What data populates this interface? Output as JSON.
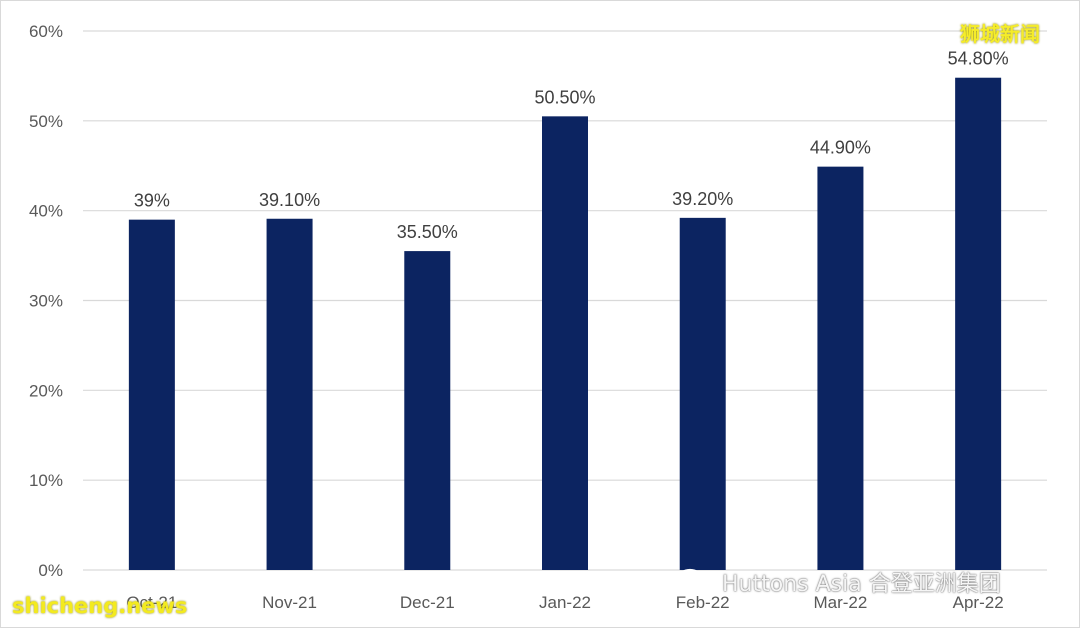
{
  "chart_data": {
    "type": "bar",
    "title": "",
    "xlabel": "",
    "ylabel": "",
    "categories": [
      "Oct-21",
      "Nov-21",
      "Dec-21",
      "Jan-22",
      "Feb-22",
      "Mar-22",
      "Apr-22"
    ],
    "values": [
      39,
      39.1,
      35.5,
      50.5,
      39.2,
      44.9,
      54.8
    ],
    "data_labels": [
      "39%",
      "39.10%",
      "35.50%",
      "50.50%",
      "39.20%",
      "44.90%",
      "54.80%"
    ],
    "yticks": [
      "0%",
      "10%",
      "20%",
      "30%",
      "40%",
      "50%",
      "60%"
    ],
    "ylim": [
      0,
      60
    ],
    "grid": true,
    "legend": "none",
    "bar_color": "#0c2461",
    "grid_color": "#d9d9d9"
  },
  "watermarks": {
    "top_right": "狮城新闻",
    "bottom_left": "shicheng.news",
    "bottom_right": "Huttons Asia 合登亚洲集团",
    "bottom_right_icon": "wechat-icon"
  }
}
